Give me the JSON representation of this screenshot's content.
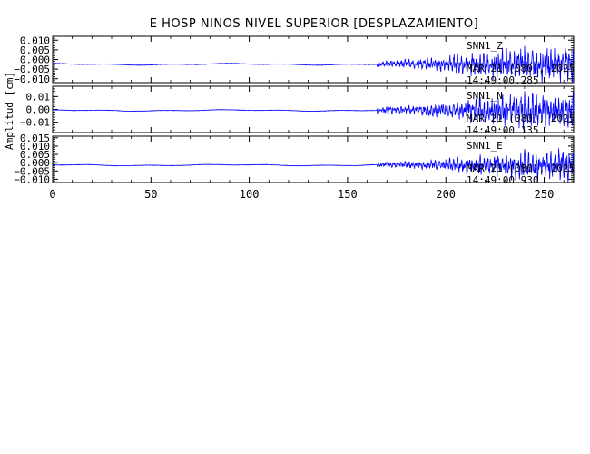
{
  "chart_data": {
    "type": "line",
    "title": "E HOSP NINOS NIVEL SUPERIOR [DESPLAZAMIENTO]",
    "ylabel": "Amplitud [cm]",
    "xlabel": "",
    "xlim": [
      0,
      265
    ],
    "x_ticks": [
      0,
      50,
      100,
      150,
      200,
      250
    ],
    "x_tick_labels": [
      "0",
      "50",
      "100",
      "150",
      "200",
      "250"
    ],
    "line_color": "#0000ff",
    "grid": false,
    "panels": [
      {
        "ylim": [
          -0.012,
          0.012
        ],
        "y_ticks": [
          0.01,
          0.005,
          0.0,
          -0.005,
          -0.01
        ],
        "y_tick_labels": [
          "0.010",
          "0.005",
          "0.000",
          "−0.005",
          "−0.010"
        ],
        "channel": "SNN1_Z",
        "date": "MAR 21 (080), 2025",
        "time": "14:49:00.285",
        "baseline": -0.0025,
        "pre_event_amp": 0.0004,
        "event_start": 165,
        "event_peak_time": 233,
        "event_peak_amp": 0.011,
        "end_time": 265,
        "seed": 11
      },
      {
        "ylim": [
          -0.018,
          0.018
        ],
        "y_ticks": [
          0.01,
          0.0,
          -0.01
        ],
        "y_tick_labels": [
          "0.01",
          "0.00",
          "−0.01"
        ],
        "channel": "SNN1_N",
        "date": "MAR 21 (080), 2025",
        "time": "14:49:00.135",
        "baseline": -0.0008,
        "pre_event_amp": 0.0005,
        "event_start": 165,
        "event_peak_time": 235,
        "event_peak_amp": 0.017,
        "end_time": 265,
        "seed": 23
      },
      {
        "ylim": [
          -0.012,
          0.016
        ],
        "y_ticks": [
          0.015,
          0.01,
          0.005,
          0.0,
          -0.005,
          -0.01
        ],
        "y_tick_labels": [
          "0.015",
          "0.010",
          "0.005",
          "0.000",
          "−0.005",
          "−0.010"
        ],
        "channel": "SNN1_E",
        "date": "MAR 21 (080), 2025",
        "time": "14:49:00.930",
        "baseline": -0.0015,
        "pre_event_amp": 0.0004,
        "event_start": 165,
        "event_peak_time": 240,
        "event_peak_amp": 0.011,
        "end_time": 265,
        "seed": 37
      }
    ]
  }
}
